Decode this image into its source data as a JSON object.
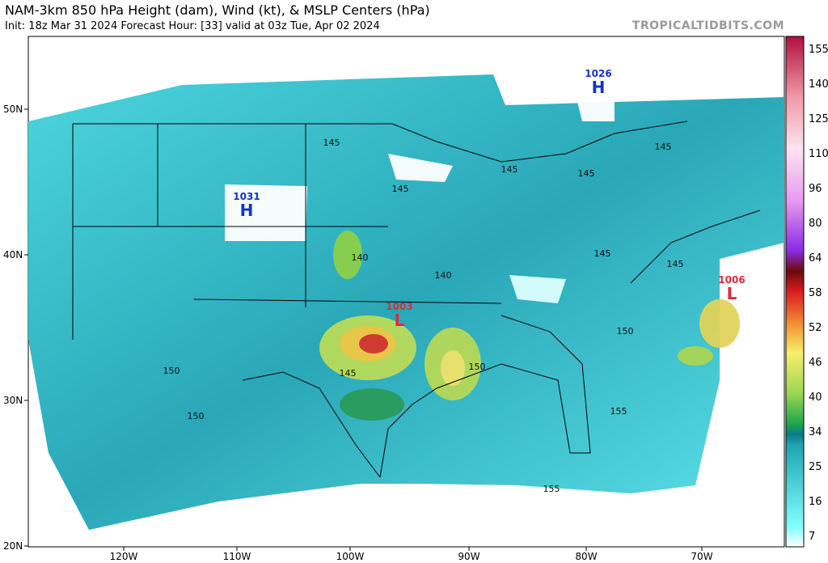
{
  "header": {
    "title": "NAM-3km 850 hPa Height (dam), Wind (kt), & MSLP Centers (hPa)",
    "subtitle": "Init: 18z Mar 31 2024   Forecast Hour: [33]   valid at 03z Tue, Apr 02 2024",
    "brand": "TROPICALTIDBITS.COM"
  },
  "latitude_labels": [
    "50N",
    "40N",
    "30N",
    "20N"
  ],
  "longitude_labels": [
    "120W",
    "110W",
    "100W",
    "90W",
    "80W",
    "70W"
  ],
  "colorbar_labels": [
    "155",
    "140",
    "125",
    "110",
    "96",
    "80",
    "64",
    "58",
    "52",
    "46",
    "40",
    "34",
    "25",
    "16",
    "7"
  ],
  "pressure_centers": [
    {
      "letter": "H",
      "value": "1026"
    },
    {
      "letter": "H",
      "value": "1031"
    },
    {
      "letter": "L",
      "value": "1006"
    },
    {
      "letter": "L",
      "value": "1003"
    }
  ],
  "contour_labels": [
    "145",
    "145",
    "145",
    "145",
    "145",
    "140",
    "140",
    "145",
    "145",
    "150",
    "150",
    "150",
    "150",
    "155",
    "155",
    "145"
  ]
}
